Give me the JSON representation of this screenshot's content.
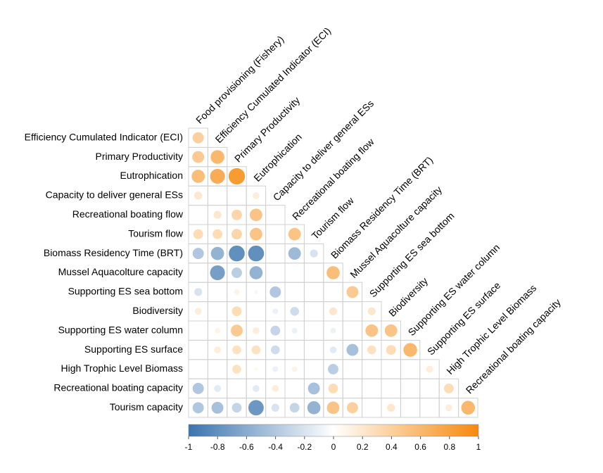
{
  "chart_data": {
    "type": "corrplot",
    "row_labels": [
      "Efficiency Cumulated Indicator (ECI)",
      "Primary Productivity",
      "Eutrophication",
      "Capacity to deliver general ESs",
      "Recreational boating flow",
      "Tourism flow",
      "Biomass Residency Time (BRT)",
      "Mussel Aquacolture capacity",
      "Supporting ES sea bottom",
      "Biodiversity",
      "Supporting ES water column",
      "Supporting ES surface",
      "High Trophic Level Biomass",
      "Recreational boating capacity",
      "Tourism capacity"
    ],
    "column_labels": [
      "Food provisioning (Fishery)",
      "Efficiency Cumulated Indicator (ECI)",
      "Primary Productivity",
      "Eutrophication",
      "Capacity to deliver general ESs",
      "Recreational boating flow",
      "Tourism flow",
      "Biomass Residency Time (BRT)",
      "Mussel Aquacolture capacity",
      "Supporting ES sea bottom",
      "Biodiversity",
      "Supporting ES water column",
      "Supporting ES surface",
      "High Trophic Level Biomass",
      "Recreational boating capacity"
    ],
    "values": [
      [
        0.4
      ],
      [
        0.45,
        0.6
      ],
      [
        0.55,
        0.7,
        0.85
      ],
      [
        0.2,
        null,
        null,
        0.15
      ],
      [
        null,
        0.2,
        0.35,
        0.5,
        null
      ],
      [
        0.3,
        0.3,
        0.35,
        0.5,
        null,
        0.5
      ],
      [
        -0.4,
        -0.55,
        -0.8,
        -0.8,
        null,
        -0.5,
        -0.2
      ],
      [
        null,
        -0.7,
        -0.35,
        -0.55,
        null,
        null,
        null,
        0.55
      ],
      [
        -0.2,
        null,
        0.1,
        -0.05,
        -0.4,
        null,
        null,
        null,
        0.45
      ],
      [
        0.15,
        null,
        0.3,
        null,
        -0.1,
        -0.25,
        null,
        0.2,
        null,
        0.2
      ],
      [
        null,
        0.1,
        0.45,
        0.15,
        -0.3,
        -0.1,
        null,
        -0.1,
        null,
        0.5,
        0.5
      ],
      [
        null,
        0.15,
        0.25,
        0.25,
        -0.25,
        null,
        null,
        -0.15,
        -0.45,
        0.25,
        0.3,
        0.6
      ],
      [
        null,
        null,
        0.25,
        0.05,
        -0.1,
        0.1,
        null,
        -0.35,
        null,
        null,
        null,
        null,
        0.15
      ],
      [
        -0.4,
        -0.15,
        null,
        -0.15,
        0.15,
        null,
        -0.45,
        0.3,
        null,
        null,
        null,
        null,
        null,
        0.3
      ],
      [
        -0.4,
        -0.45,
        -0.3,
        -0.75,
        -0.2,
        -0.3,
        -0.55,
        0.5,
        0.4,
        null,
        0.2,
        null,
        null,
        0.15,
        0.6
      ]
    ],
    "clim": [
      -1,
      1
    ],
    "colorbar_ticks": [
      -1,
      -0.8,
      -0.6,
      -0.4,
      -0.2,
      0,
      0.2,
      0.4,
      0.6,
      0.8,
      1
    ],
    "colors": [
      "#3b74ae",
      "#ffffff",
      "#f7890c"
    ]
  }
}
